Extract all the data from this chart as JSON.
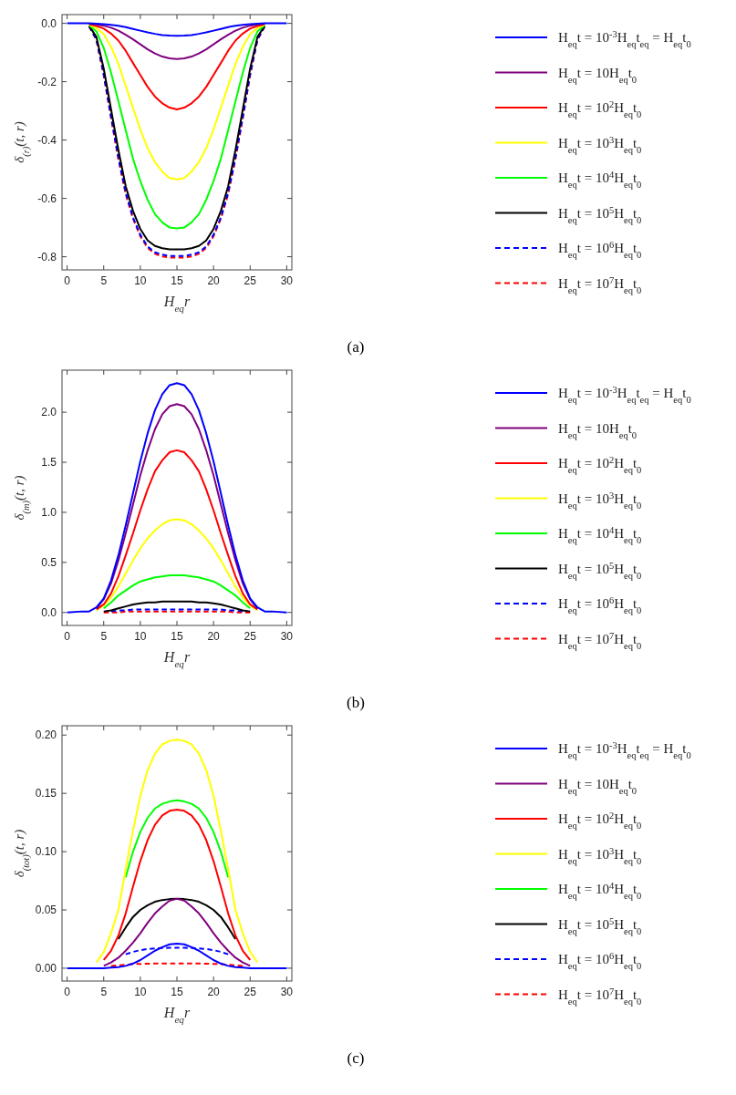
{
  "chart_data": [
    {
      "type": "line",
      "xlabel": "H$_{eq}$r",
      "ylabel": "δ$_{(r)}$(t, r)",
      "annotations": [
        "(a)"
      ],
      "legend": "right",
      "grid": false,
      "xlim": [
        -0.7,
        30.7
      ],
      "xticks": [
        0,
        5,
        10,
        15,
        20,
        25,
        30
      ],
      "ylim": [
        -0.845,
        0.03
      ],
      "yticks": [
        {
          "value": -0.8,
          "label": "-0.8"
        },
        {
          "value": -0.6,
          "label": "-0.6"
        },
        {
          "value": -0.4,
          "label": "-0.4"
        },
        {
          "value": -0.2,
          "label": "-0.2"
        },
        {
          "value": 0,
          "label": "0.0"
        }
      ],
      "x": [
        0,
        2,
        3,
        4,
        5,
        6,
        7,
        8,
        9,
        10,
        11,
        12,
        13,
        14,
        15,
        16,
        17,
        18,
        19,
        20,
        21,
        22,
        23,
        24,
        25,
        26,
        27,
        28,
        30
      ],
      "series": [
        {
          "name": "H$_{eq}$t = 10$^{-3}$H$_{eq}$t$_{eq}$ = H$_{eq}$t$_{0}$",
          "color": "#0000ff",
          "values": [
            0,
            0,
            0,
            -0.001,
            -0.003,
            -0.005,
            -0.008,
            -0.013,
            -0.019,
            -0.025,
            -0.031,
            -0.036,
            -0.04,
            -0.042,
            -0.043,
            -0.042,
            -0.04,
            -0.036,
            -0.031,
            -0.025,
            -0.019,
            -0.013,
            -0.008,
            -0.005,
            -0.003,
            -0.001,
            0,
            0,
            0
          ]
        },
        {
          "name": "H$_{eq}$t = 10H$_{eq}$t$_{0}$",
          "color": "#800080",
          "values": [
            null,
            null,
            -0.001,
            -0.004,
            -0.008,
            -0.015,
            -0.025,
            -0.039,
            -0.055,
            -0.072,
            -0.089,
            -0.103,
            -0.114,
            -0.12,
            -0.122,
            -0.12,
            -0.114,
            -0.103,
            -0.089,
            -0.072,
            -0.055,
            -0.039,
            -0.025,
            -0.015,
            -0.008,
            -0.004,
            -0.001,
            null,
            null
          ]
        },
        {
          "name": "H$_{eq}$t = 10$^{2}$H$_{eq}$t$_{0}$",
          "color": "#ff0000",
          "values": [
            null,
            null,
            -0.003,
            -0.009,
            -0.018,
            -0.035,
            -0.059,
            -0.094,
            -0.136,
            -0.177,
            -0.218,
            -0.251,
            -0.274,
            -0.289,
            -0.295,
            -0.289,
            -0.274,
            -0.251,
            -0.218,
            -0.177,
            -0.136,
            -0.094,
            -0.059,
            -0.035,
            -0.018,
            -0.009,
            -0.003,
            null,
            null
          ]
        },
        {
          "name": "H$_{eq}$t = 10$^{3}$H$_{eq}$t$_{0}$",
          "color": "#ffff00",
          "values": [
            null,
            null,
            -0.005,
            -0.016,
            -0.037,
            -0.08,
            -0.139,
            -0.214,
            -0.289,
            -0.364,
            -0.428,
            -0.476,
            -0.508,
            -0.53,
            -0.535,
            -0.53,
            -0.508,
            -0.476,
            -0.428,
            -0.364,
            -0.289,
            -0.214,
            -0.139,
            -0.08,
            -0.037,
            -0.016,
            -0.005,
            null,
            null
          ]
        },
        {
          "name": "H$_{eq}$t = 10$^{4}$H$_{eq}$t$_{0}$",
          "color": "#00ff00",
          "values": [
            null,
            null,
            -0.007,
            -0.028,
            -0.084,
            -0.169,
            -0.267,
            -0.366,
            -0.464,
            -0.541,
            -0.605,
            -0.654,
            -0.682,
            -0.7,
            -0.703,
            -0.7,
            -0.682,
            -0.654,
            -0.605,
            -0.541,
            -0.464,
            -0.366,
            -0.267,
            -0.169,
            -0.084,
            -0.028,
            -0.007,
            null,
            null
          ]
        },
        {
          "name": "H$_{eq}$t = 10$^{5}$H$_{eq}$t$_{0}$",
          "color": "#000000",
          "values": [
            null,
            null,
            -0.008,
            -0.047,
            -0.155,
            -0.295,
            -0.434,
            -0.558,
            -0.643,
            -0.705,
            -0.744,
            -0.763,
            -0.771,
            -0.775,
            -0.775,
            -0.775,
            -0.771,
            -0.763,
            -0.744,
            -0.705,
            -0.643,
            -0.558,
            -0.434,
            -0.295,
            -0.155,
            -0.047,
            -0.008,
            null,
            null
          ]
        },
        {
          "name": "H$_{eq}$t = 10$^{6}$H$_{eq}$t$_{0}$",
          "color": "#0000ff",
          "line_style": "dashed",
          "values": [
            null,
            null,
            -0.01,
            -0.055,
            -0.175,
            -0.32,
            -0.46,
            -0.58,
            -0.665,
            -0.725,
            -0.765,
            -0.785,
            -0.793,
            -0.797,
            -0.797,
            -0.797,
            -0.793,
            -0.785,
            -0.765,
            -0.725,
            -0.665,
            -0.58,
            -0.46,
            -0.32,
            -0.175,
            -0.055,
            -0.01,
            null,
            null
          ]
        },
        {
          "name": "H$_{eq}$t = 10$^{7}$H$_{eq}$t$_{0}$",
          "color": "#ff0000",
          "line_style": "dashed",
          "values": [
            null,
            null,
            -0.011,
            -0.057,
            -0.178,
            -0.325,
            -0.465,
            -0.585,
            -0.67,
            -0.73,
            -0.77,
            -0.79,
            -0.799,
            -0.803,
            -0.803,
            -0.803,
            -0.799,
            -0.79,
            -0.77,
            -0.73,
            -0.67,
            -0.585,
            -0.465,
            -0.325,
            -0.178,
            -0.057,
            -0.011,
            null,
            null
          ]
        }
      ]
    },
    {
      "type": "line",
      "xlabel": "H$_{eq}$r",
      "ylabel": "δ$_{(m)}$(t, r)",
      "annotations": [
        "(b)"
      ],
      "legend": "right",
      "grid": false,
      "xlim": [
        -0.7,
        30.7
      ],
      "xticks": [
        0,
        5,
        10,
        15,
        20,
        25,
        30
      ],
      "ylim": [
        -0.13,
        2.42
      ],
      "yticks": [
        {
          "value": 0,
          "label": "0.0"
        },
        {
          "value": 0.5,
          "label": "0.5"
        },
        {
          "value": 1,
          "label": "1.0"
        },
        {
          "value": 1.5,
          "label": "1.5"
        },
        {
          "value": 2,
          "label": "2.0"
        }
      ],
      "x": [
        0,
        2,
        3,
        4,
        5,
        6,
        7,
        8,
        9,
        10,
        11,
        12,
        13,
        14,
        15,
        16,
        17,
        18,
        19,
        20,
        21,
        22,
        23,
        24,
        25,
        26,
        27,
        28,
        30
      ],
      "series": [
        {
          "name": "H$_{eq}$t = 10$^{-3}$H$_{eq}$t$_{eq}$ = H$_{eq}$t$_{0}$",
          "color": "#0000ff",
          "values": [
            0,
            0.01,
            0.01,
            0.05,
            0.14,
            0.32,
            0.57,
            0.87,
            1.19,
            1.51,
            1.79,
            2.02,
            2.18,
            2.27,
            2.29,
            2.27,
            2.18,
            2.02,
            1.79,
            1.51,
            1.19,
            0.87,
            0.57,
            0.32,
            0.14,
            0.05,
            0.01,
            0.01,
            0
          ]
        },
        {
          "name": "H$_{eq}$t = 10H$_{eq}$t$_{0}$",
          "color": "#800080",
          "values": [
            null,
            null,
            null,
            0.04,
            0.13,
            0.29,
            0.52,
            0.79,
            1.08,
            1.37,
            1.62,
            1.83,
            1.98,
            2.06,
            2.08,
            2.06,
            1.98,
            1.83,
            1.62,
            1.37,
            1.08,
            0.79,
            0.52,
            0.29,
            0.13,
            0.04,
            null,
            null,
            null
          ]
        },
        {
          "name": "H$_{eq}$t = 10$^{2}$H$_{eq}$t$_{0}$",
          "color": "#ff0000",
          "values": [
            null,
            null,
            null,
            0.03,
            0.08,
            0.19,
            0.36,
            0.57,
            0.79,
            1.02,
            1.23,
            1.41,
            1.52,
            1.6,
            1.62,
            1.6,
            1.52,
            1.41,
            1.23,
            1.02,
            0.79,
            0.57,
            0.36,
            0.19,
            0.08,
            0.03,
            null,
            null,
            null
          ]
        },
        {
          "name": "H$_{eq}$t = 10$^{3}$H$_{eq}$t$_{0}$",
          "color": "#ffff00",
          "values": [
            null,
            null,
            null,
            0.02,
            0.07,
            0.15,
            0.26,
            0.39,
            0.52,
            0.64,
            0.74,
            0.82,
            0.88,
            0.92,
            0.93,
            0.92,
            0.88,
            0.82,
            0.74,
            0.64,
            0.52,
            0.39,
            0.26,
            0.15,
            0.07,
            0.02,
            null,
            null,
            null
          ]
        },
        {
          "name": "H$_{eq}$t = 10$^{4}$H$_{eq}$t$_{0}$",
          "color": "#00ff00",
          "values": [
            null,
            null,
            null,
            null,
            0.04,
            0.1,
            0.17,
            0.22,
            0.27,
            0.31,
            0.33,
            0.35,
            0.36,
            0.37,
            0.37,
            0.37,
            0.36,
            0.35,
            0.33,
            0.31,
            0.27,
            0.22,
            0.17,
            0.1,
            0.04,
            null,
            null,
            null,
            null
          ]
        },
        {
          "name": "H$_{eq}$t = 10$^{5}$H$_{eq}$t$_{0}$",
          "color": "#000000",
          "values": [
            null,
            null,
            null,
            null,
            0.01,
            0.02,
            0.04,
            0.06,
            0.08,
            0.09,
            0.1,
            0.1,
            0.11,
            0.11,
            0.11,
            0.11,
            0.11,
            0.1,
            0.1,
            0.09,
            0.08,
            0.06,
            0.04,
            0.02,
            0.01,
            null,
            null,
            null,
            null
          ]
        },
        {
          "name": "H$_{eq}$t = 10$^{6}$H$_{eq}$t$_{0}$",
          "color": "#0000ff",
          "line_style": "dashed",
          "values": [
            null,
            null,
            null,
            null,
            null,
            0.01,
            0.02,
            0.02,
            0.03,
            0.03,
            0.03,
            0.03,
            0.03,
            0.03,
            0.03,
            0.03,
            0.03,
            0.03,
            0.03,
            0.03,
            0.03,
            0.02,
            0.02,
            0.01,
            null,
            null,
            null,
            null,
            null
          ]
        },
        {
          "name": "H$_{eq}$t = 10$^{7}$H$_{eq}$t$_{0}$",
          "color": "#ff0000",
          "line_style": "dashed",
          "values": [
            null,
            null,
            null,
            null,
            0,
            0,
            0,
            0.01,
            0.01,
            0.01,
            0.01,
            0.01,
            0.01,
            0.01,
            0.01,
            0.01,
            0.01,
            0.01,
            0.01,
            0.01,
            0.01,
            0.01,
            0,
            0,
            0,
            null,
            null,
            null,
            null
          ]
        }
      ]
    },
    {
      "type": "line",
      "xlabel": "H$_{eq}$r",
      "ylabel": "δ$_{(tot)}$(t, r)",
      "annotations": [
        "(c)"
      ],
      "legend": "right",
      "grid": false,
      "xlim": [
        -0.7,
        30.7
      ],
      "xticks": [
        0,
        5,
        10,
        15,
        20,
        25,
        30
      ],
      "ylim": [
        -0.011,
        0.208
      ],
      "yticks": [
        {
          "value": 0,
          "label": "0.00"
        },
        {
          "value": 0.05,
          "label": "0.05"
        },
        {
          "value": 0.1,
          "label": "0.10"
        },
        {
          "value": 0.15,
          "label": "0.15"
        },
        {
          "value": 0.2,
          "label": "0.20"
        }
      ],
      "x": [
        0,
        2,
        3,
        4,
        5,
        6,
        7,
        8,
        9,
        10,
        11,
        12,
        13,
        14,
        15,
        16,
        17,
        18,
        19,
        20,
        21,
        22,
        23,
        24,
        25,
        26,
        27,
        28,
        30
      ],
      "series": [
        {
          "name": "H$_{eq}$t = 10$^{-3}$H$_{eq}$t$_{eq}$ = H$_{eq}$t$_{0}$",
          "color": "#0000ff",
          "values": [
            0,
            0,
            0,
            0,
            0,
            0.0005,
            0.001,
            0.002,
            0.004,
            0.007,
            0.011,
            0.015,
            0.018,
            0.0205,
            0.021,
            0.0205,
            0.018,
            0.015,
            0.011,
            0.007,
            0.004,
            0.002,
            0.001,
            0.0005,
            0,
            0,
            0,
            0,
            0
          ]
        },
        {
          "name": "H$_{eq}$t = 10H$_{eq}$t$_{0}$",
          "color": "#800080",
          "values": [
            null,
            null,
            null,
            null,
            0.002,
            0.005,
            0.009,
            0.015,
            0.022,
            0.03,
            0.039,
            0.047,
            0.053,
            0.058,
            0.0595,
            0.058,
            0.053,
            0.047,
            0.039,
            0.03,
            0.022,
            0.015,
            0.009,
            0.005,
            0.002,
            null,
            null,
            null,
            null
          ]
        },
        {
          "name": "H$_{eq}$t = 10$^{2}$H$_{eq}$t$_{0}$",
          "color": "#ff0000",
          "values": [
            null,
            null,
            null,
            null,
            0.007,
            0.015,
            0.028,
            0.047,
            0.07,
            0.092,
            0.11,
            0.123,
            0.131,
            0.135,
            0.136,
            0.135,
            0.131,
            0.123,
            0.11,
            0.092,
            0.07,
            0.047,
            0.028,
            0.015,
            0.007,
            null,
            null,
            null,
            null
          ]
        },
        {
          "name": "H$_{eq}$t = 10$^{3}$H$_{eq}$t$_{0}$",
          "color": "#ffff00",
          "values": [
            null,
            null,
            null,
            0.005,
            0.014,
            0.03,
            0.05,
            0.085,
            0.118,
            0.148,
            0.17,
            0.184,
            0.192,
            0.195,
            0.196,
            0.195,
            0.192,
            0.184,
            0.17,
            0.148,
            0.118,
            0.085,
            0.05,
            0.03,
            0.014,
            0.005,
            null,
            null,
            null
          ]
        },
        {
          "name": "H$_{eq}$t = 10$^{4}$H$_{eq}$t$_{0}$",
          "color": "#00ff00",
          "values": [
            null,
            null,
            null,
            null,
            null,
            null,
            null,
            0.078,
            0.1,
            0.117,
            0.129,
            0.137,
            0.141,
            0.143,
            0.144,
            0.143,
            0.141,
            0.137,
            0.129,
            0.117,
            0.1,
            0.078,
            null,
            null,
            null,
            null,
            null,
            null,
            null
          ]
        },
        {
          "name": "H$_{eq}$t = 10$^{5}$H$_{eq}$t$_{0}$",
          "color": "#000000",
          "values": [
            null,
            null,
            null,
            null,
            null,
            null,
            0.025,
            0.035,
            0.044,
            0.05,
            0.054,
            0.057,
            0.0585,
            0.0593,
            0.0595,
            0.0593,
            0.0585,
            0.057,
            0.054,
            0.05,
            0.044,
            0.035,
            0.025,
            null,
            null,
            null,
            null,
            null,
            null
          ]
        },
        {
          "name": "H$_{eq}$t = 10$^{6}$H$_{eq}$t$_{0}$",
          "color": "#0000ff",
          "line_style": "dashed",
          "values": [
            null,
            null,
            null,
            null,
            null,
            null,
            null,
            0.012,
            0.014,
            0.0155,
            0.0165,
            0.017,
            0.0173,
            0.0175,
            0.0175,
            0.0175,
            0.0173,
            0.017,
            0.0165,
            0.0155,
            0.014,
            0.012,
            null,
            null,
            null,
            null,
            null,
            null,
            null
          ]
        },
        {
          "name": "H$_{eq}$t = 10$^{7}$H$_{eq}$t$_{0}$",
          "color": "#ff0000",
          "line_style": "dashed",
          "values": [
            null,
            null,
            null,
            null,
            null,
            0.002,
            0.0025,
            0.003,
            0.0035,
            0.0037,
            0.0039,
            0.004,
            0.004,
            0.004,
            0.004,
            0.004,
            0.004,
            0.004,
            0.0039,
            0.0037,
            0.0035,
            0.003,
            0.0025,
            0.002,
            null,
            null,
            null,
            null,
            null
          ]
        }
      ]
    }
  ]
}
